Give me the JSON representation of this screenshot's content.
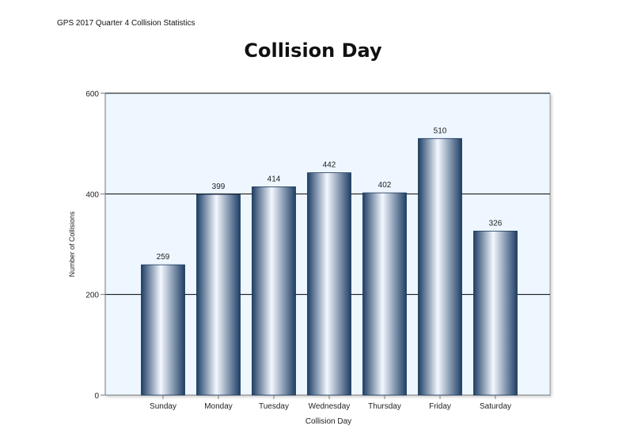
{
  "header": {
    "note": "GPS 2017 Quarter 4 Collision Statistics"
  },
  "colors": {
    "plot_background": "#eef7ff",
    "bar_dark": "#1f3f66",
    "bar_light": "#f4f8ff",
    "gridline": "#000000",
    "axis": "#777777",
    "text": "#222222"
  },
  "chart_data": {
    "type": "bar",
    "title": "Collision Day",
    "xlabel": "Collision Day",
    "ylabel": "Number of Collisions",
    "ylim": [
      0,
      600
    ],
    "yticks": [
      0,
      200,
      400,
      600
    ],
    "grid": true,
    "categories": [
      "Sunday",
      "Monday",
      "Tuesday",
      "Wednesday",
      "Thursday",
      "Friday",
      "Saturday"
    ],
    "values": [
      259,
      399,
      414,
      442,
      402,
      510,
      326
    ],
    "data_labels": [
      "259",
      "399",
      "414",
      "442",
      "402",
      "510",
      "326"
    ]
  }
}
